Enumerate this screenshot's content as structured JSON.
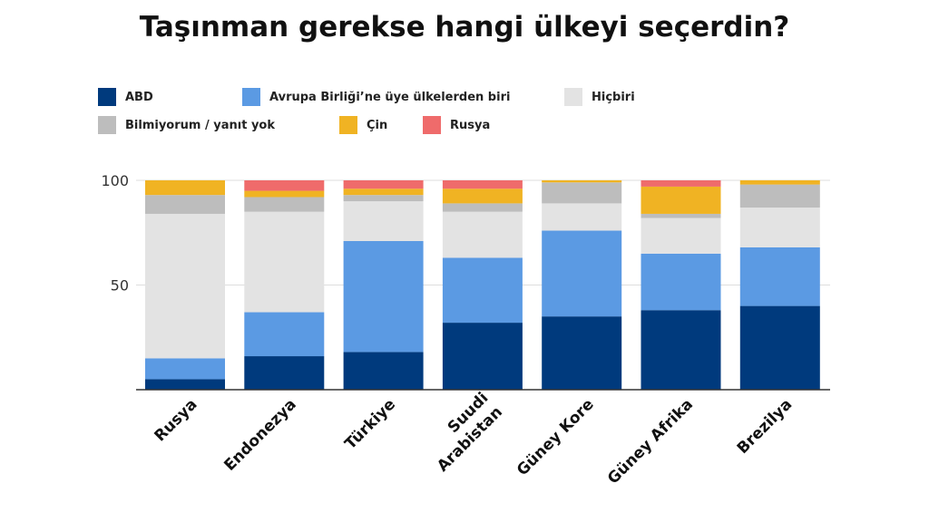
{
  "chart_data": {
    "type": "bar",
    "stacked": true,
    "title": "Taşınman gerekse hangi ülkeyi seçerdin?",
    "xlabel": "",
    "ylabel": "",
    "ylim": [
      0,
      100
    ],
    "yticks": [
      100,
      50
    ],
    "grid": false,
    "legend_position": "top",
    "categories": [
      "Rusya",
      "Endonezya",
      "Türkiye",
      "Suudi Arabistan",
      "Güney Kore",
      "Güney Afrika",
      "Brezilya"
    ],
    "series": [
      {
        "name": "ABD",
        "color": "#003a7d",
        "values": [
          5,
          16,
          18,
          32,
          35,
          38,
          40
        ]
      },
      {
        "name": "Avrupa Birliği’ne üye ülkelerden biri",
        "color": "#5b9ae3",
        "values": [
          10,
          21,
          53,
          31,
          41,
          27,
          28
        ]
      },
      {
        "name": "Hiçbiri",
        "color": "#e3e3e3",
        "values": [
          69,
          48,
          19,
          22,
          13,
          17,
          19
        ]
      },
      {
        "name": "Bilmiyorum / yanıt yok",
        "color": "#bdbdbd",
        "values": [
          9,
          7,
          3,
          4,
          10,
          2,
          11
        ]
      },
      {
        "name": "Çin",
        "color": "#f0b323",
        "values": [
          7,
          3,
          3,
          7,
          1,
          13,
          2
        ]
      },
      {
        "name": "Rusya",
        "color": "#ef6b6b",
        "values": [
          0,
          5,
          4,
          4,
          0,
          3,
          0
        ]
      }
    ]
  }
}
